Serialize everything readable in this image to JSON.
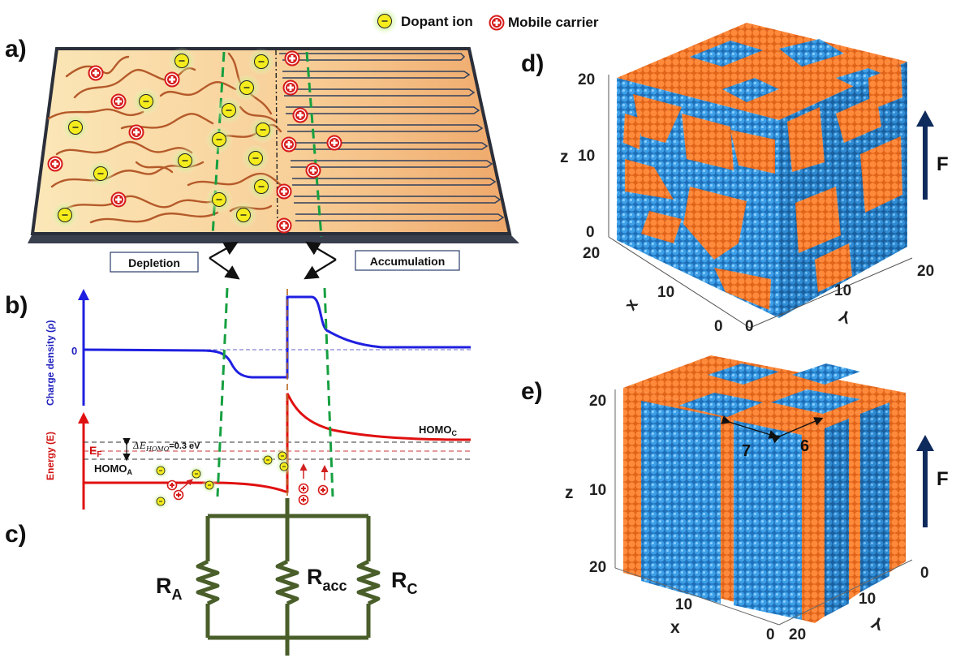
{
  "panels": {
    "a": "a)",
    "b": "b)",
    "c": "c)",
    "d": "d)",
    "e": "e)"
  },
  "legend": {
    "dopant": "Dopant ion",
    "carrier": "Mobile carrier"
  },
  "regions": {
    "depletion": "Depletion",
    "accumulation": "Accumulation"
  },
  "plot_b": {
    "charge_axis": "Charge density (ρ)",
    "energy_axis": "Energy (E)",
    "zero": "0",
    "fermi": "E",
    "fermi_sub": "F",
    "delta_label": "ΔE",
    "delta_sub": "HOMO",
    "delta_value": "=0.3 eV",
    "homo_a": "HOMO",
    "homo_a_sub": "A",
    "homo_c": "HOMO",
    "homo_c_sub": "C"
  },
  "circuit": {
    "ra": "R",
    "ra_sub": "A",
    "racc": "R",
    "racc_sub": "acc",
    "rc": "R",
    "rc_sub": "C"
  },
  "cube_d": {
    "z": "z",
    "x": "x",
    "y": "Y",
    "force": "F",
    "z_ticks": [
      "20",
      "10",
      "0"
    ],
    "x_ticks": [
      "20",
      "10",
      "0"
    ],
    "y_ticks": [
      "0",
      "10",
      "20"
    ]
  },
  "cube_e": {
    "z": "z",
    "x": "x",
    "y": "Y",
    "force": "F",
    "z_ticks": [
      "20",
      "10"
    ],
    "x_ticks": [
      "20",
      "10",
      "0"
    ],
    "y_ticks": [
      "20",
      "10",
      "0"
    ],
    "dim1": "7",
    "dim2": "6"
  },
  "colors": {
    "orange": "#ff7f2a",
    "blue": "#2a8fd8",
    "red": "#e01010",
    "circuitGreen": "#4a5e2a",
    "curveBlue": "#1f1fe0"
  }
}
